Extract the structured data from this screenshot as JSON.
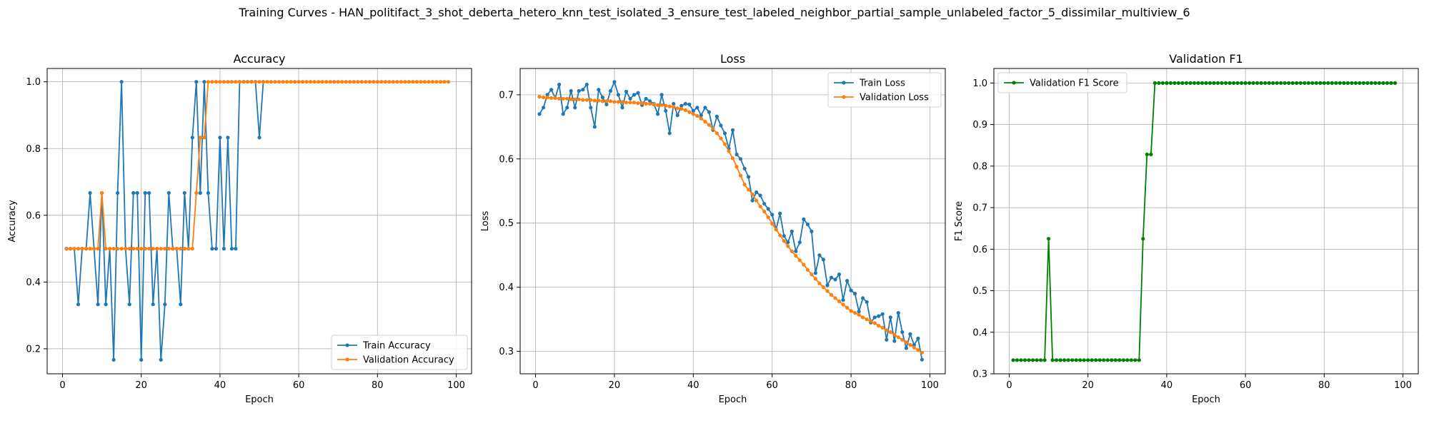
{
  "suptitle": "Training Curves - HAN_politifact_3_shot_deberta_hetero_knn_test_isolated_3_ensure_test_labeled_neighbor_partial_sample_unlabeled_factor_5_dissimilar_multiview_6",
  "colors": {
    "blue": "#1f77b4",
    "orange": "#ff7f0e",
    "green": "#008000",
    "grid": "#b0b0b0"
  },
  "chart_data": [
    {
      "type": "line",
      "title": "Accuracy",
      "xlabel": "Epoch",
      "ylabel": "Accuracy",
      "xlim": [
        -3.9,
        103.9
      ],
      "ylim": [
        0.125,
        1.04
      ],
      "xticks": [
        0,
        20,
        40,
        60,
        80,
        100
      ],
      "yticks": [
        0.2,
        0.4,
        0.6,
        0.8,
        1.0
      ],
      "ytick_labels": [
        "0.2",
        "0.4",
        "0.6",
        "0.8",
        "1.0"
      ],
      "grid": true,
      "legend_position": "lower-right",
      "series": [
        {
          "name": "Train Accuracy",
          "color": "#1f77b4",
          "x": [
            1,
            2,
            3,
            4,
            5,
            6,
            7,
            8,
            9,
            10,
            11,
            12,
            13,
            14,
            15,
            16,
            17,
            18,
            19,
            20,
            21,
            22,
            23,
            24,
            25,
            26,
            27,
            28,
            29,
            30,
            31,
            32,
            33,
            34,
            35,
            36,
            37,
            38,
            39,
            40,
            41,
            42,
            43,
            44,
            45,
            46,
            47,
            48,
            49,
            50,
            51
          ],
          "y": [
            0.5,
            0.5,
            0.5,
            0.333,
            0.5,
            0.5,
            0.667,
            0.5,
            0.333,
            0.667,
            0.333,
            0.5,
            0.167,
            0.667,
            1.0,
            0.5,
            0.333,
            0.667,
            0.667,
            0.167,
            0.667,
            0.667,
            0.333,
            0.5,
            0.167,
            0.333,
            0.667,
            0.5,
            0.5,
            0.333,
            0.667,
            0.5,
            0.833,
            1.0,
            0.667,
            1.0,
            0.667,
            0.5,
            0.5,
            0.833,
            0.5,
            0.833,
            0.5,
            0.5,
            1.0,
            1.0,
            1.0,
            1.0,
            1.0,
            0.833,
            1.0
          ]
        },
        {
          "name": "Validation Accuracy",
          "color": "#ff7f0e",
          "x": [
            1,
            2,
            3,
            4,
            5,
            6,
            7,
            8,
            9,
            10,
            11,
            12,
            13,
            14,
            15,
            16,
            17,
            18,
            19,
            20,
            21,
            22,
            23,
            24,
            25,
            26,
            27,
            28,
            29,
            30,
            31,
            32,
            33,
            34,
            35,
            36,
            37,
            38,
            39,
            40,
            41,
            42,
            43,
            44,
            45,
            46,
            47,
            48,
            49,
            50,
            51,
            52,
            53,
            54,
            55,
            56,
            57,
            58,
            59,
            60,
            61,
            62,
            63,
            64,
            65,
            66,
            67,
            68,
            69,
            70,
            71,
            72,
            73,
            74,
            75,
            76,
            77,
            78,
            79,
            80,
            81,
            82,
            83,
            84,
            85,
            86,
            87,
            88,
            89,
            90,
            91,
            92,
            93,
            94,
            95,
            96,
            97,
            98
          ],
          "y": [
            0.5,
            0.5,
            0.5,
            0.5,
            0.5,
            0.5,
            0.5,
            0.5,
            0.5,
            0.667,
            0.5,
            0.5,
            0.5,
            0.5,
            0.5,
            0.5,
            0.5,
            0.5,
            0.5,
            0.5,
            0.5,
            0.5,
            0.5,
            0.5,
            0.5,
            0.5,
            0.5,
            0.5,
            0.5,
            0.5,
            0.5,
            0.5,
            0.5,
            0.667,
            0.833,
            0.833,
            1.0,
            1.0,
            1.0,
            1.0,
            1.0,
            1.0,
            1.0,
            1.0,
            1.0,
            1.0,
            1.0,
            1.0,
            1.0,
            1.0,
            1.0,
            1.0,
            1.0,
            1.0,
            1.0,
            1.0,
            1.0,
            1.0,
            1.0,
            1.0,
            1.0,
            1.0,
            1.0,
            1.0,
            1.0,
            1.0,
            1.0,
            1.0,
            1.0,
            1.0,
            1.0,
            1.0,
            1.0,
            1.0,
            1.0,
            1.0,
            1.0,
            1.0,
            1.0,
            1.0,
            1.0,
            1.0,
            1.0,
            1.0,
            1.0,
            1.0,
            1.0,
            1.0,
            1.0,
            1.0,
            1.0,
            1.0,
            1.0,
            1.0,
            1.0,
            1.0,
            1.0,
            1.0
          ]
        }
      ]
    },
    {
      "type": "line",
      "title": "Loss",
      "xlabel": "Epoch",
      "ylabel": "Loss",
      "xlim": [
        -3.9,
        103.9
      ],
      "ylim": [
        0.265,
        0.741
      ],
      "xticks": [
        0,
        20,
        40,
        60,
        80,
        100
      ],
      "yticks": [
        0.3,
        0.4,
        0.5,
        0.6,
        0.7
      ],
      "ytick_labels": [
        "0.3",
        "0.4",
        "0.5",
        "0.6",
        "0.7"
      ],
      "grid": true,
      "legend_position": "upper-right",
      "series": [
        {
          "name": "Train Loss",
          "color": "#1f77b4",
          "x": [
            1,
            2,
            3,
            4,
            5,
            6,
            7,
            8,
            9,
            10,
            11,
            12,
            13,
            14,
            15,
            16,
            17,
            18,
            19,
            20,
            21,
            22,
            23,
            24,
            25,
            26,
            27,
            28,
            29,
            30,
            31,
            32,
            33,
            34,
            35,
            36,
            37,
            38,
            39,
            40,
            41,
            42,
            43,
            44,
            45,
            46,
            47,
            48,
            49,
            50,
            51,
            52,
            53,
            54,
            55,
            56,
            57,
            58,
            59,
            60,
            61,
            62,
            63,
            64,
            65,
            66,
            67,
            68,
            69,
            70,
            71,
            72,
            73,
            74,
            75,
            76,
            77,
            78,
            79,
            80,
            81,
            82,
            83,
            84,
            85,
            86,
            87,
            88,
            89,
            90,
            91,
            92,
            93,
            94,
            95,
            96,
            97,
            98
          ],
          "y": [
            0.67,
            0.68,
            0.7,
            0.708,
            0.695,
            0.716,
            0.67,
            0.68,
            0.706,
            0.68,
            0.706,
            0.708,
            0.716,
            0.68,
            0.65,
            0.708,
            0.696,
            0.685,
            0.706,
            0.72,
            0.7,
            0.68,
            0.705,
            0.694,
            0.7,
            0.703,
            0.684,
            0.694,
            0.69,
            0.686,
            0.67,
            0.7,
            0.675,
            0.64,
            0.686,
            0.668,
            0.683,
            0.686,
            0.685,
            0.675,
            0.68,
            0.668,
            0.68,
            0.673,
            0.645,
            0.666,
            0.652,
            0.64,
            0.616,
            0.645,
            0.607,
            0.6,
            0.585,
            0.572,
            0.535,
            0.548,
            0.543,
            0.53,
            0.522,
            0.513,
            0.49,
            0.515,
            0.48,
            0.47,
            0.487,
            0.456,
            0.47,
            0.506,
            0.498,
            0.487,
            0.422,
            0.45,
            0.443,
            0.403,
            0.415,
            0.412,
            0.42,
            0.38,
            0.41,
            0.395,
            0.39,
            0.362,
            0.383,
            0.377,
            0.345,
            0.353,
            0.355,
            0.358,
            0.318,
            0.353,
            0.316,
            0.36,
            0.33,
            0.305,
            0.327,
            0.31,
            0.32,
            0.287
          ]
        },
        {
          "name": "Validation Loss",
          "color": "#ff7f0e",
          "x": [
            1,
            2,
            3,
            4,
            5,
            6,
            7,
            8,
            9,
            10,
            11,
            12,
            13,
            14,
            15,
            16,
            17,
            18,
            19,
            20,
            21,
            22,
            23,
            24,
            25,
            26,
            27,
            28,
            29,
            30,
            31,
            32,
            33,
            34,
            35,
            36,
            37,
            38,
            39,
            40,
            41,
            42,
            43,
            44,
            45,
            46,
            47,
            48,
            49,
            50,
            51,
            52,
            53,
            54,
            55,
            56,
            57,
            58,
            59,
            60,
            61,
            62,
            63,
            64,
            65,
            66,
            67,
            68,
            69,
            70,
            71,
            72,
            73,
            74,
            75,
            76,
            77,
            78,
            79,
            80,
            81,
            82,
            83,
            84,
            85,
            86,
            87,
            88,
            89,
            90,
            91,
            92,
            93,
            94,
            95,
            96,
            97,
            98
          ],
          "y": [
            0.697,
            0.696,
            0.696,
            0.695,
            0.695,
            0.694,
            0.694,
            0.694,
            0.693,
            0.693,
            0.693,
            0.692,
            0.692,
            0.692,
            0.691,
            0.691,
            0.69,
            0.69,
            0.69,
            0.689,
            0.689,
            0.689,
            0.688,
            0.688,
            0.688,
            0.687,
            0.687,
            0.686,
            0.686,
            0.685,
            0.684,
            0.684,
            0.683,
            0.682,
            0.681,
            0.679,
            0.678,
            0.676,
            0.673,
            0.67,
            0.667,
            0.663,
            0.658,
            0.653,
            0.647,
            0.64,
            0.632,
            0.623,
            0.612,
            0.601,
            0.588,
            0.574,
            0.56,
            0.552,
            0.545,
            0.535,
            0.526,
            0.518,
            0.509,
            0.499,
            0.49,
            0.481,
            0.472,
            0.464,
            0.456,
            0.449,
            0.442,
            0.435,
            0.427,
            0.42,
            0.413,
            0.406,
            0.4,
            0.394,
            0.388,
            0.383,
            0.378,
            0.373,
            0.368,
            0.363,
            0.36,
            0.357,
            0.353,
            0.35,
            0.347,
            0.344,
            0.34,
            0.337,
            0.333,
            0.33,
            0.326,
            0.322,
            0.318,
            0.314,
            0.31,
            0.306,
            0.302,
            0.298
          ]
        }
      ]
    },
    {
      "type": "line",
      "title": "Validation F1",
      "xlabel": "Epoch",
      "ylabel": "F1 Score",
      "xlim": [
        -3.9,
        103.9
      ],
      "ylim": [
        0.3,
        1.035
      ],
      "xticks": [
        0,
        20,
        40,
        60,
        80,
        100
      ],
      "yticks": [
        0.3,
        0.4,
        0.5,
        0.6,
        0.7,
        0.8,
        0.9,
        1.0
      ],
      "ytick_labels": [
        "0.3",
        "0.4",
        "0.5",
        "0.6",
        "0.7",
        "0.8",
        "0.9",
        "1.0"
      ],
      "grid": true,
      "legend_position": "upper-left",
      "series": [
        {
          "name": "Validation F1 Score",
          "color": "#008000",
          "x": [
            1,
            2,
            3,
            4,
            5,
            6,
            7,
            8,
            9,
            10,
            11,
            12,
            13,
            14,
            15,
            16,
            17,
            18,
            19,
            20,
            21,
            22,
            23,
            24,
            25,
            26,
            27,
            28,
            29,
            30,
            31,
            32,
            33,
            34,
            35,
            36,
            37,
            38,
            39,
            40,
            41,
            42,
            43,
            44,
            45,
            46,
            47,
            48,
            49,
            50,
            51,
            52,
            53,
            54,
            55,
            56,
            57,
            58,
            59,
            60,
            61,
            62,
            63,
            64,
            65,
            66,
            67,
            68,
            69,
            70,
            71,
            72,
            73,
            74,
            75,
            76,
            77,
            78,
            79,
            80,
            81,
            82,
            83,
            84,
            85,
            86,
            87,
            88,
            89,
            90,
            91,
            92,
            93,
            94,
            95,
            96,
            97,
            98
          ],
          "y": [
            0.333,
            0.333,
            0.333,
            0.333,
            0.333,
            0.333,
            0.333,
            0.333,
            0.333,
            0.625,
            0.333,
            0.333,
            0.333,
            0.333,
            0.333,
            0.333,
            0.333,
            0.333,
            0.333,
            0.333,
            0.333,
            0.333,
            0.333,
            0.333,
            0.333,
            0.333,
            0.333,
            0.333,
            0.333,
            0.333,
            0.333,
            0.333,
            0.333,
            0.625,
            0.828,
            0.828,
            1.0,
            1.0,
            1.0,
            1.0,
            1.0,
            1.0,
            1.0,
            1.0,
            1.0,
            1.0,
            1.0,
            1.0,
            1.0,
            1.0,
            1.0,
            1.0,
            1.0,
            1.0,
            1.0,
            1.0,
            1.0,
            1.0,
            1.0,
            1.0,
            1.0,
            1.0,
            1.0,
            1.0,
            1.0,
            1.0,
            1.0,
            1.0,
            1.0,
            1.0,
            1.0,
            1.0,
            1.0,
            1.0,
            1.0,
            1.0,
            1.0,
            1.0,
            1.0,
            1.0,
            1.0,
            1.0,
            1.0,
            1.0,
            1.0,
            1.0,
            1.0,
            1.0,
            1.0,
            1.0,
            1.0,
            1.0,
            1.0,
            1.0,
            1.0,
            1.0,
            1.0,
            1.0
          ]
        }
      ]
    }
  ]
}
